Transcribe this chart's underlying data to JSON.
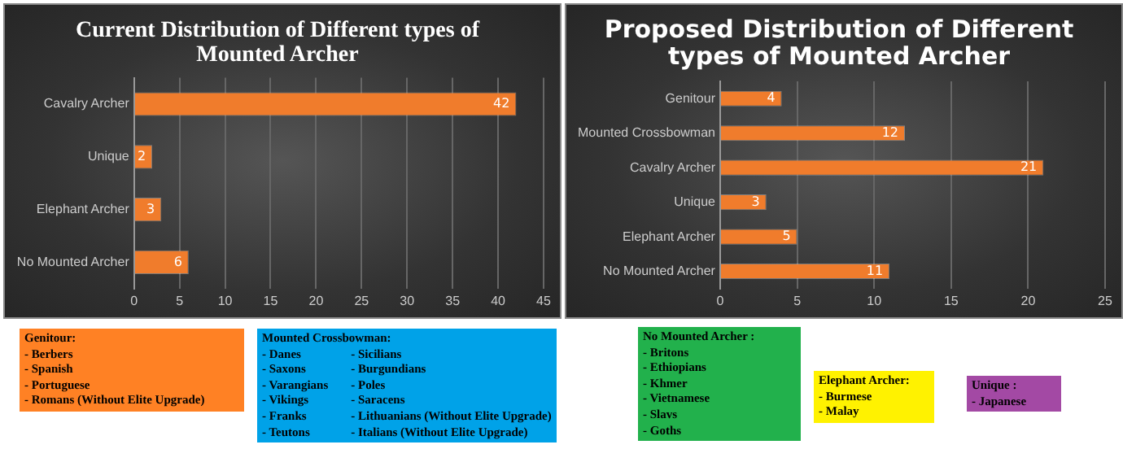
{
  "chart_data": [
    {
      "type": "bar",
      "orientation": "horizontal",
      "title": "Current Distribution of Different types of Mounted Archer",
      "categories": [
        "Cavalry Archer",
        "Unique",
        "Elephant Archer",
        "No Mounted Archer"
      ],
      "values": [
        42,
        2,
        3,
        6
      ],
      "color": "#f07c2c",
      "xlim": [
        0,
        45
      ],
      "xticks": [
        0,
        5,
        10,
        15,
        20,
        25,
        30,
        35,
        40,
        45
      ],
      "grid": "x",
      "data_labels": true
    },
    {
      "type": "bar",
      "orientation": "horizontal",
      "title": "Proposed Distribution of Different types of Mounted Archer",
      "categories": [
        "Genitour",
        "Mounted Crossbowman",
        "Cavalry Archer",
        "Unique",
        "Elephant Archer",
        "No Mounted Archer"
      ],
      "values": [
        4,
        12,
        21,
        3,
        5,
        11
      ],
      "color": "#f07c2c",
      "xlim": [
        0,
        25
      ],
      "xticks": [
        0,
        5,
        10,
        15,
        20,
        25
      ],
      "grid": "x",
      "data_labels": true
    },
    {
      "type": "other",
      "colors": [
        "#ff8124",
        "#00a2e8",
        "#22b14c",
        "#fff200",
        "#a349a4"
      ],
      "annotations": [
        "Genitour:\n- Berbers\n- Spanish\n- Portuguese\n- Romans (Without Elite Upgrade)",
        "Mounted Crossbowman:\n- Danes\n- Saxons\n- Varangians\n- Vikings\n- Franks\n- Teutons\n- Sicilians\n- Burgundians\n- Poles\n- Saracens\n- Lithuanians (Without Elite Upgrade)\n- Italians (Without Elite Upgrade)",
        "No Mounted Archer :\n- Britons\n- Ethiopians\n- Khmer\n- Vietnamese\n- Slavs\n- Goths",
        "Elephant Archer:\n- Burmese\n- Malay",
        "Unique :\n- Japanese"
      ]
    }
  ]
}
